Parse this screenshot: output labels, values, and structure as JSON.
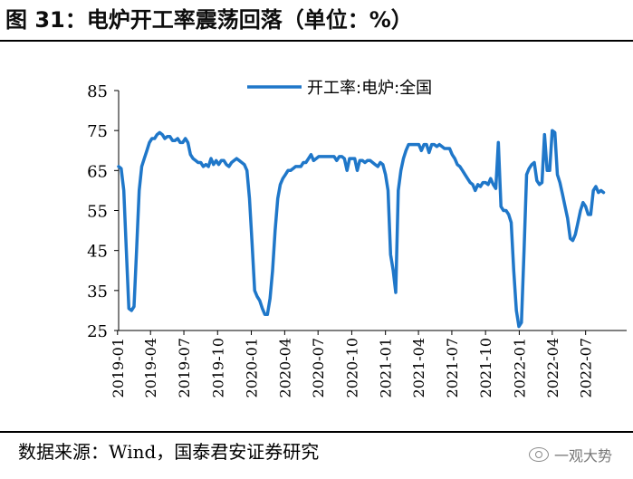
{
  "header": {
    "title": "图 31：电炉开工率震荡回落（单位：%）"
  },
  "footer": {
    "source": "数据来源：Wind，国泰君安证券研究",
    "watermark": "一观大势"
  },
  "chart_data": {
    "type": "line",
    "title": "",
    "xlabel": "",
    "ylabel": "",
    "ylim": [
      25,
      85
    ],
    "yticks": [
      25,
      35,
      45,
      55,
      65,
      75,
      85
    ],
    "x_range": [
      "2019-01-04",
      "2022-10-21"
    ],
    "xticks": [
      "2019-01",
      "2019-04",
      "2019-07",
      "2019-10",
      "2020-01",
      "2020-04",
      "2020-07",
      "2020-10",
      "2021-01",
      "2021-04",
      "2021-07",
      "2021-10",
      "2022-01",
      "2022-04",
      "2022-07"
    ],
    "grid": false,
    "legend": "top-center",
    "colors": {
      "series": "#1f77c9",
      "axis": "#000000"
    },
    "series": [
      {
        "name": "开工率:电炉:全国",
        "points": [
          [
            "2019-01-04",
            66
          ],
          [
            "2019-01-11",
            65.5
          ],
          [
            "2019-01-18",
            60
          ],
          [
            "2019-01-25",
            45
          ],
          [
            "2019-02-01",
            30.5
          ],
          [
            "2019-02-08",
            30
          ],
          [
            "2019-02-15",
            31
          ],
          [
            "2019-02-22",
            45
          ],
          [
            "2019-03-01",
            60
          ],
          [
            "2019-03-08",
            66
          ],
          [
            "2019-03-15",
            68
          ],
          [
            "2019-03-22",
            70
          ],
          [
            "2019-03-29",
            72
          ],
          [
            "2019-04-05",
            73
          ],
          [
            "2019-04-12",
            73
          ],
          [
            "2019-04-19",
            74
          ],
          [
            "2019-04-26",
            74.5
          ],
          [
            "2019-05-03",
            74
          ],
          [
            "2019-05-10",
            73
          ],
          [
            "2019-05-17",
            73.5
          ],
          [
            "2019-05-24",
            73.5
          ],
          [
            "2019-05-31",
            72.5
          ],
          [
            "2019-06-07",
            72.5
          ],
          [
            "2019-06-14",
            73
          ],
          [
            "2019-06-21",
            72
          ],
          [
            "2019-06-28",
            72
          ],
          [
            "2019-07-05",
            73
          ],
          [
            "2019-07-12",
            72
          ],
          [
            "2019-07-19",
            69
          ],
          [
            "2019-07-26",
            68
          ],
          [
            "2019-08-02",
            67.5
          ],
          [
            "2019-08-09",
            67
          ],
          [
            "2019-08-16",
            67
          ],
          [
            "2019-08-23",
            66
          ],
          [
            "2019-08-30",
            66.5
          ],
          [
            "2019-09-06",
            66
          ],
          [
            "2019-09-13",
            68
          ],
          [
            "2019-09-20",
            66.5
          ],
          [
            "2019-09-27",
            67.5
          ],
          [
            "2019-10-04",
            66.5
          ],
          [
            "2019-10-11",
            67.5
          ],
          [
            "2019-10-18",
            67.5
          ],
          [
            "2019-10-25",
            66.5
          ],
          [
            "2019-11-01",
            66
          ],
          [
            "2019-11-08",
            67
          ],
          [
            "2019-11-15",
            67.5
          ],
          [
            "2019-11-22",
            68
          ],
          [
            "2019-11-29",
            67.5
          ],
          [
            "2019-12-06",
            67
          ],
          [
            "2019-12-13",
            66.5
          ],
          [
            "2019-12-20",
            65
          ],
          [
            "2019-12-27",
            58
          ],
          [
            "2020-01-03",
            47
          ],
          [
            "2020-01-10",
            35
          ],
          [
            "2020-01-17",
            33.5
          ],
          [
            "2020-01-24",
            32.5
          ],
          [
            "2020-01-31",
            30.5
          ],
          [
            "2020-02-07",
            29
          ],
          [
            "2020-02-14",
            29
          ],
          [
            "2020-02-21",
            33
          ],
          [
            "2020-02-28",
            40
          ],
          [
            "2020-03-06",
            50
          ],
          [
            "2020-03-13",
            58
          ],
          [
            "2020-03-20",
            61.5
          ],
          [
            "2020-03-27",
            63
          ],
          [
            "2020-04-03",
            64
          ],
          [
            "2020-04-10",
            65
          ],
          [
            "2020-04-17",
            65
          ],
          [
            "2020-04-24",
            65.5
          ],
          [
            "2020-05-01",
            66
          ],
          [
            "2020-05-08",
            66
          ],
          [
            "2020-05-15",
            66
          ],
          [
            "2020-05-22",
            67
          ],
          [
            "2020-05-29",
            67
          ],
          [
            "2020-06-05",
            68
          ],
          [
            "2020-06-12",
            69
          ],
          [
            "2020-06-19",
            67.5
          ],
          [
            "2020-06-26",
            68
          ],
          [
            "2020-07-03",
            68.5
          ],
          [
            "2020-07-10",
            68.5
          ],
          [
            "2020-07-17",
            68.5
          ],
          [
            "2020-07-24",
            68.5
          ],
          [
            "2020-07-31",
            68.5
          ],
          [
            "2020-08-07",
            68.5
          ],
          [
            "2020-08-14",
            68.5
          ],
          [
            "2020-08-21",
            67.5
          ],
          [
            "2020-08-28",
            68.5
          ],
          [
            "2020-09-04",
            68.5
          ],
          [
            "2020-09-11",
            68
          ],
          [
            "2020-09-18",
            65
          ],
          [
            "2020-09-25",
            68
          ],
          [
            "2020-10-02",
            68
          ],
          [
            "2020-10-09",
            68
          ],
          [
            "2020-10-16",
            65
          ],
          [
            "2020-10-23",
            67.5
          ],
          [
            "2020-10-30",
            67.5
          ],
          [
            "2020-11-06",
            67
          ],
          [
            "2020-11-13",
            67.5
          ],
          [
            "2020-11-20",
            67.5
          ],
          [
            "2020-11-27",
            67
          ],
          [
            "2020-12-04",
            66.5
          ],
          [
            "2020-12-11",
            66
          ],
          [
            "2020-12-18",
            67
          ],
          [
            "2020-12-25",
            66.5
          ],
          [
            "2021-01-01",
            64
          ],
          [
            "2021-01-08",
            60
          ],
          [
            "2021-01-15",
            44
          ],
          [
            "2021-01-22",
            40
          ],
          [
            "2021-01-29",
            34.5
          ],
          [
            "2021-02-05",
            60
          ],
          [
            "2021-02-12",
            65
          ],
          [
            "2021-02-19",
            68
          ],
          [
            "2021-02-26",
            70
          ],
          [
            "2021-03-05",
            71.5
          ],
          [
            "2021-03-12",
            71.5
          ],
          [
            "2021-03-19",
            71.5
          ],
          [
            "2021-03-26",
            71.5
          ],
          [
            "2021-04-02",
            71.5
          ],
          [
            "2021-04-09",
            70
          ],
          [
            "2021-04-16",
            71.5
          ],
          [
            "2021-04-23",
            71.5
          ],
          [
            "2021-04-30",
            69.5
          ],
          [
            "2021-05-07",
            71.5
          ],
          [
            "2021-05-14",
            71.5
          ],
          [
            "2021-05-21",
            71
          ],
          [
            "2021-05-28",
            71.5
          ],
          [
            "2021-06-04",
            71
          ],
          [
            "2021-06-11",
            70.5
          ],
          [
            "2021-06-18",
            70.5
          ],
          [
            "2021-06-25",
            70.5
          ],
          [
            "2021-07-02",
            69
          ],
          [
            "2021-07-09",
            68
          ],
          [
            "2021-07-16",
            66.5
          ],
          [
            "2021-07-23",
            66
          ],
          [
            "2021-07-30",
            65
          ],
          [
            "2021-08-06",
            64
          ],
          [
            "2021-08-13",
            63
          ],
          [
            "2021-08-20",
            62
          ],
          [
            "2021-08-27",
            61.5
          ],
          [
            "2021-09-03",
            60
          ],
          [
            "2021-09-10",
            61.5
          ],
          [
            "2021-09-17",
            61
          ],
          [
            "2021-09-24",
            62
          ],
          [
            "2021-10-01",
            62
          ],
          [
            "2021-10-08",
            61.5
          ],
          [
            "2021-10-15",
            63
          ],
          [
            "2021-10-22",
            61.5
          ],
          [
            "2021-10-29",
            60.5
          ],
          [
            "2021-11-05",
            72
          ],
          [
            "2021-11-12",
            56
          ],
          [
            "2021-11-19",
            55
          ],
          [
            "2021-11-26",
            55
          ],
          [
            "2021-12-03",
            54
          ],
          [
            "2021-12-10",
            52
          ],
          [
            "2021-12-17",
            40
          ],
          [
            "2021-12-24",
            30
          ],
          [
            "2021-12-31",
            26
          ],
          [
            "2022-01-07",
            27
          ],
          [
            "2022-01-14",
            45
          ],
          [
            "2022-01-21",
            64
          ],
          [
            "2022-01-28",
            65.5
          ],
          [
            "2022-02-04",
            66.5
          ],
          [
            "2022-02-11",
            67
          ],
          [
            "2022-02-18",
            62.5
          ],
          [
            "2022-02-25",
            61.5
          ],
          [
            "2022-03-04",
            62
          ],
          [
            "2022-03-11",
            74
          ],
          [
            "2022-03-18",
            65
          ],
          [
            "2022-03-25",
            65
          ],
          [
            "2022-04-01",
            75
          ],
          [
            "2022-04-08",
            74.5
          ],
          [
            "2022-04-15",
            64
          ],
          [
            "2022-04-22",
            62
          ],
          [
            "2022-04-29",
            59
          ],
          [
            "2022-05-06",
            56
          ],
          [
            "2022-05-13",
            53
          ],
          [
            "2022-05-20",
            48
          ],
          [
            "2022-05-27",
            47.5
          ],
          [
            "2022-06-03",
            49
          ],
          [
            "2022-06-10",
            52
          ],
          [
            "2022-06-17",
            55
          ],
          [
            "2022-06-24",
            57
          ],
          [
            "2022-07-01",
            56
          ],
          [
            "2022-07-08",
            54
          ],
          [
            "2022-07-15",
            54
          ],
          [
            "2022-07-22",
            60
          ],
          [
            "2022-07-29",
            61
          ],
          [
            "2022-08-05",
            59.5
          ],
          [
            "2022-08-12",
            60
          ],
          [
            "2022-08-19",
            59.5
          ]
        ]
      }
    ]
  }
}
